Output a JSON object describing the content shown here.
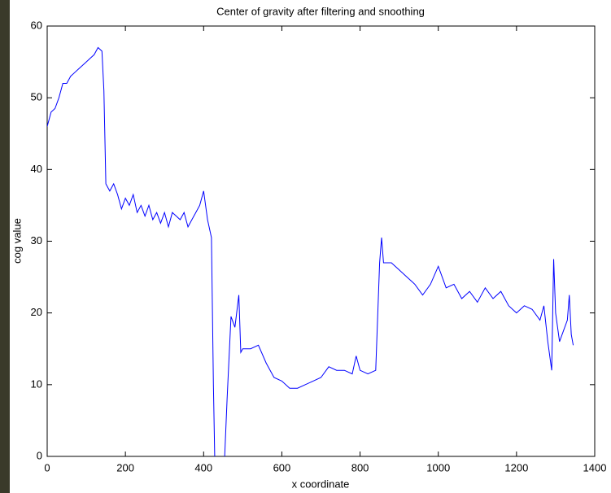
{
  "chart_data": {
    "type": "line",
    "title": "Center of gravity after filtering and snoothing",
    "xlabel": "x coordinate",
    "ylabel": "cog value",
    "x": [
      0,
      10,
      20,
      30,
      40,
      50,
      60,
      70,
      80,
      90,
      100,
      110,
      120,
      130,
      140,
      145,
      150,
      160,
      170,
      180,
      190,
      200,
      210,
      220,
      230,
      240,
      250,
      260,
      270,
      280,
      290,
      300,
      310,
      320,
      330,
      340,
      350,
      360,
      370,
      380,
      390,
      400,
      410,
      420,
      425,
      430,
      440,
      450,
      460,
      470,
      480,
      490,
      495,
      500,
      520,
      540,
      560,
      580,
      600,
      620,
      640,
      660,
      680,
      700,
      720,
      740,
      760,
      780,
      790,
      800,
      820,
      840,
      850,
      855,
      860,
      880,
      900,
      920,
      940,
      960,
      980,
      1000,
      1020,
      1040,
      1060,
      1080,
      1100,
      1120,
      1140,
      1160,
      1180,
      1200,
      1220,
      1240,
      1260,
      1270,
      1280,
      1290,
      1295,
      1300,
      1310,
      1320,
      1330,
      1335,
      1340,
      1345
    ],
    "series": [
      {
        "name": "cog",
        "color": "#0000ff",
        "values": [
          46,
          48,
          48.5,
          50,
          52,
          52,
          53,
          53.5,
          54,
          54.5,
          55,
          55.5,
          56,
          57,
          56.5,
          51,
          38,
          37,
          38,
          36.5,
          34.5,
          36,
          35,
          36.5,
          34,
          35,
          33.5,
          35,
          33,
          34,
          32.5,
          34,
          32,
          34,
          33.5,
          33,
          34,
          32,
          33,
          34,
          35,
          37,
          33,
          30.5,
          10,
          -5,
          -5,
          -5,
          8,
          19.5,
          18,
          22.5,
          14.5,
          15,
          15,
          15.5,
          13,
          11,
          10.5,
          9.5,
          9.5,
          10,
          10.5,
          11,
          12.5,
          12,
          12,
          11.5,
          14,
          12,
          11.5,
          12,
          27,
          30.5,
          27,
          27,
          26,
          25,
          24,
          22.5,
          24,
          26.5,
          23.5,
          24,
          22,
          23,
          21.5,
          23.5,
          22,
          23,
          21,
          20,
          21,
          20.5,
          19,
          21,
          16,
          12,
          27.5,
          20,
          16,
          17.5,
          19,
          22.5,
          17,
          15.5
        ]
      }
    ],
    "xlim": [
      0,
      1400
    ],
    "xticks": [
      0,
      200,
      400,
      600,
      800,
      1000,
      1200,
      1400
    ],
    "ylim": [
      0,
      60
    ],
    "yticks": [
      0,
      10,
      20,
      30,
      40,
      50,
      60
    ]
  }
}
